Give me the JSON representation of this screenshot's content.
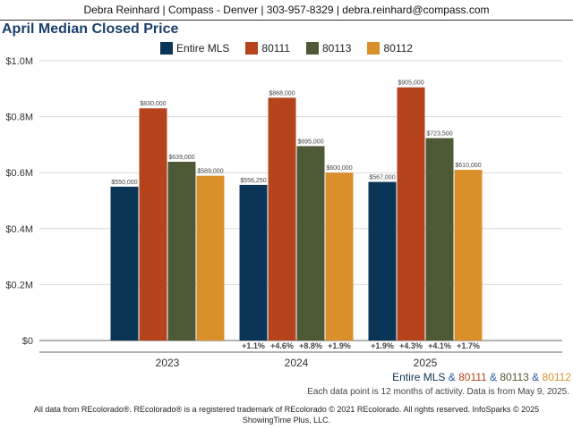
{
  "header": {
    "contact": "Debra Reinhard | Compass - Denver | 303-957-8329 | debra.reinhard@compass.com"
  },
  "chart_data": {
    "type": "bar",
    "title": "April Median Closed Price",
    "categories": [
      "2023",
      "2024",
      "2025"
    ],
    "ylim": [
      0,
      1000000
    ],
    "yticks": [
      "$0",
      "$0.2M",
      "$0.4M",
      "$0.6M",
      "$0.8M",
      "$1.0M"
    ],
    "grid": true,
    "legend_position": "top",
    "series": [
      {
        "name": "Entire MLS",
        "color": "#0b3556",
        "values": [
          550000,
          556250,
          567000
        ],
        "labels": [
          "$550,000",
          "$556,250",
          "$567,000"
        ],
        "change": [
          "",
          "+1.1%",
          "+1.9%"
        ]
      },
      {
        "name": "80111",
        "color": "#b5441c",
        "values": [
          830000,
          868000,
          905000
        ],
        "labels": [
          "$830,000",
          "$868,000",
          "$905,000"
        ],
        "change": [
          "",
          "+4.6%",
          "+4.3%"
        ]
      },
      {
        "name": "80113",
        "color": "#4e5a35",
        "values": [
          639000,
          695000,
          723500
        ],
        "labels": [
          "$639,000",
          "$695,000",
          "$723,500"
        ],
        "change": [
          "",
          "+8.8%",
          "+4.1%"
        ]
      },
      {
        "name": "80112",
        "color": "#d9902a",
        "values": [
          589000,
          600000,
          610000
        ],
        "labels": [
          "$589,000",
          "$600,000",
          "$610,000"
        ],
        "change": [
          "",
          "+1.9%",
          "+1.7%"
        ]
      }
    ]
  },
  "bottom_legend": {
    "sep": " & ",
    "items": [
      {
        "text": "Entire MLS",
        "color": "#0b3556"
      },
      {
        "text": "80111",
        "color": "#b5441c"
      },
      {
        "text": "80113",
        "color": "#4e5a35"
      },
      {
        "text": "80112",
        "color": "#d9902a"
      }
    ],
    "sep_color": "#2a5a9b"
  },
  "note": "Each data point is 12 months of activity. Data is from May 9, 2025.",
  "footer": {
    "line1": "All data from REcolorado®. REcolorado® is a registered trademark of REcolorado © 2021 REcolorado. All rights reserved. InfoSparks © 2025",
    "line2": "ShowingTime Plus, LLC."
  }
}
